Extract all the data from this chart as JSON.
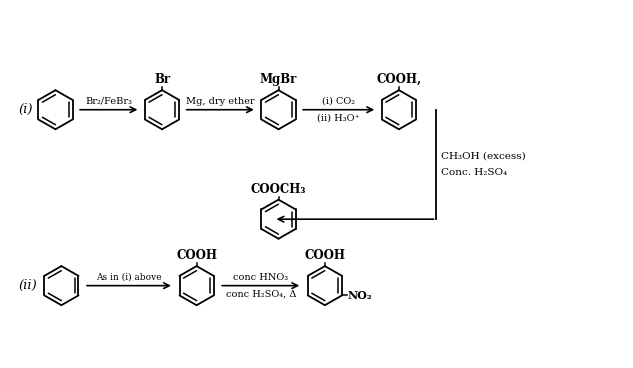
{
  "background_color": "#ffffff",
  "fig_width": 6.33,
  "fig_height": 3.68,
  "dpi": 100,
  "reaction_i_label": "(i)",
  "reaction_ii_label": "(ii)",
  "arrow1_label": "Br₂/FeBr₃",
  "arrow2_label": "Mg, dry ether",
  "arrow3_label_top": "(i) CO₂",
  "arrow3_label_bot": "(ii) H₃O⁺",
  "arrow4_label_top": "CH₃OH (excess)",
  "arrow4_label_bot": "Conc. H₂SO₄",
  "arrow5_label": "As in (i) above",
  "arrow6_label_top": "conc HNO₃",
  "arrow6_label_bot": "conc H₂SO₄, Δ",
  "mol2_sub": "Br",
  "mol3_sub": "MgBr",
  "mol4_sub": "COOH,",
  "mol5_sub": "COOCH₃",
  "mol6_sub": "COOH",
  "mol7_sub": "COOH",
  "mol7_sub2": "NO₂",
  "text_color": "#000000",
  "font_size_arrow": 7.0,
  "font_size_sub": 8.5,
  "font_size_roman": 9.5
}
